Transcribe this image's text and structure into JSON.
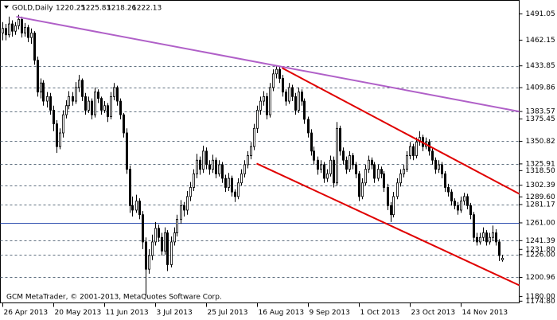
{
  "chart_data": {
    "type": "candlestick",
    "title": "GOLD,Daily",
    "quote": [
      1220.25,
      1225.83,
      1218.26,
      1222.13
    ],
    "footer": "GCM MetaTrader, © 2001-2013, MetaQuotes Software Corp.",
    "ylim": [
      1172.9,
      1505.9
    ],
    "xlim": [
      -0.5,
      162.5
    ],
    "yticks": [
      {
        "value": 1491.05,
        "label": "1491.05"
      },
      {
        "value": 1462.15,
        "label": "1462.15"
      },
      {
        "value": 1433.85,
        "label": "1433.85"
      },
      {
        "value": 1409.86,
        "label": "1409.86"
      },
      {
        "value": 1383.57,
        "label": "1383.57"
      },
      {
        "value": 1375.45,
        "label": "1375.45"
      },
      {
        "value": 1350.82,
        "label": "1350.82"
      },
      {
        "value": 1325.91,
        "label": "1325.91"
      },
      {
        "value": 1318.5,
        "label": "1318.50"
      },
      {
        "value": 1302.39,
        "label": "1302.39"
      },
      {
        "value": 1289.6,
        "label": "1289.60"
      },
      {
        "value": 1281.17,
        "label": "1281.17"
      },
      {
        "value": 1261,
        "label": "1261.00"
      },
      {
        "value": 1241.39,
        "label": "1241.39"
      },
      {
        "value": 1231.8,
        "label": "1231.80"
      },
      {
        "value": 1226,
        "label": "1226.00"
      },
      {
        "value": 1200.96,
        "label": "1200.96"
      },
      {
        "value": 1180,
        "label": "1180.00"
      },
      {
        "value": 1174.8,
        "label": "1174.80"
      }
    ],
    "grid_levels": [
      1433.85,
      1409.86,
      1383.57,
      1350.82,
      1325.91,
      1302.39,
      1281.17,
      1241.39,
      1226,
      1200.96
    ],
    "hlines": [
      {
        "value": 1261,
        "color": "#3050b0"
      }
    ],
    "xticks": [
      {
        "value": 0,
        "label": "26 Apr 2013"
      },
      {
        "value": 16,
        "label": "20 May 2013"
      },
      {
        "value": 32,
        "label": "11 Jun 2013"
      },
      {
        "value": 48,
        "label": "3 Jul 2013"
      },
      {
        "value": 64,
        "label": "25 Jul 2013"
      },
      {
        "value": 80,
        "label": "16 Aug 2013"
      },
      {
        "value": 96,
        "label": "9 Sep 2013"
      },
      {
        "value": 112,
        "label": "1 Oct 2013"
      },
      {
        "value": 128,
        "label": "23 Oct 2013"
      },
      {
        "value": 144,
        "label": "14 Nov 2013"
      }
    ],
    "trendlines": [
      {
        "x": [
          4.5,
          162.5
        ],
        "y": [
          1488,
          1383.57
        ],
        "color": "#b060c8"
      },
      {
        "x": [
          88,
          162.5
        ],
        "y": [
          1431.5,
          1293
        ],
        "color": "#e00000"
      },
      {
        "x": [
          80,
          162.5
        ],
        "y": [
          1326.3,
          1192.3
        ],
        "color": "#e00000"
      }
    ],
    "up_color": "#ffffff",
    "down_color": "#000000",
    "ohlc": [
      [
        1470,
        1482,
        1462,
        1475
      ],
      [
        1475,
        1480,
        1462,
        1468
      ],
      [
        1468,
        1488,
        1465,
        1480
      ],
      [
        1480,
        1484,
        1466,
        1472
      ],
      [
        1472,
        1482,
        1468,
        1478
      ],
      [
        1478,
        1490,
        1474,
        1485
      ],
      [
        1485,
        1488,
        1465,
        1470
      ],
      [
        1470,
        1481,
        1466,
        1476
      ],
      [
        1476,
        1479,
        1460,
        1465
      ],
      [
        1465,
        1475,
        1458,
        1470
      ],
      [
        1470,
        1472,
        1435,
        1440
      ],
      [
        1440,
        1444,
        1400,
        1405
      ],
      [
        1405,
        1420,
        1398,
        1415
      ],
      [
        1415,
        1418,
        1390,
        1395
      ],
      [
        1395,
        1405,
        1388,
        1400
      ],
      [
        1400,
        1404,
        1380,
        1385
      ],
      [
        1385,
        1390,
        1362,
        1370
      ],
      [
        1370,
        1374,
        1338,
        1345
      ],
      [
        1345,
        1365,
        1342,
        1360
      ],
      [
        1360,
        1385,
        1355,
        1380
      ],
      [
        1380,
        1396,
        1376,
        1390
      ],
      [
        1390,
        1406,
        1386,
        1400
      ],
      [
        1400,
        1405,
        1390,
        1395
      ],
      [
        1395,
        1416,
        1392,
        1410
      ],
      [
        1410,
        1424,
        1405,
        1418
      ],
      [
        1418,
        1420,
        1395,
        1400
      ],
      [
        1400,
        1404,
        1380,
        1385
      ],
      [
        1385,
        1400,
        1382,
        1395
      ],
      [
        1395,
        1398,
        1375,
        1380
      ],
      [
        1380,
        1410,
        1377,
        1405
      ],
      [
        1405,
        1408,
        1393,
        1398
      ],
      [
        1398,
        1400,
        1380,
        1385
      ],
      [
        1385,
        1395,
        1382,
        1390
      ],
      [
        1390,
        1393,
        1372,
        1378
      ],
      [
        1378,
        1405,
        1375,
        1400
      ],
      [
        1400,
        1415,
        1396,
        1410
      ],
      [
        1410,
        1412,
        1390,
        1395
      ],
      [
        1395,
        1398,
        1375,
        1380
      ],
      [
        1380,
        1382,
        1355,
        1360
      ],
      [
        1360,
        1365,
        1315,
        1320
      ],
      [
        1320,
        1324,
        1272,
        1280
      ],
      [
        1280,
        1290,
        1268,
        1275
      ],
      [
        1275,
        1292,
        1272,
        1285
      ],
      [
        1285,
        1288,
        1265,
        1270
      ],
      [
        1270,
        1274,
        1232,
        1240
      ],
      [
        1240,
        1245,
        1180,
        1210
      ],
      [
        1210,
        1232,
        1205,
        1225
      ],
      [
        1225,
        1248,
        1220,
        1240
      ],
      [
        1240,
        1262,
        1236,
        1255
      ],
      [
        1255,
        1259,
        1240,
        1245
      ],
      [
        1245,
        1250,
        1225,
        1230
      ],
      [
        1230,
        1256,
        1226,
        1250
      ],
      [
        1250,
        1253,
        1208,
        1215
      ],
      [
        1215,
        1246,
        1212,
        1240
      ],
      [
        1240,
        1256,
        1236,
        1250
      ],
      [
        1250,
        1270,
        1246,
        1265
      ],
      [
        1265,
        1286,
        1260,
        1280
      ],
      [
        1280,
        1284,
        1268,
        1275
      ],
      [
        1275,
        1296,
        1270,
        1290
      ],
      [
        1290,
        1306,
        1285,
        1300
      ],
      [
        1300,
        1320,
        1296,
        1315
      ],
      [
        1315,
        1337,
        1310,
        1330
      ],
      [
        1330,
        1334,
        1314,
        1320
      ],
      [
        1320,
        1346,
        1316,
        1340
      ],
      [
        1340,
        1344,
        1320,
        1325
      ],
      [
        1325,
        1330,
        1314,
        1320
      ],
      [
        1320,
        1336,
        1316,
        1330
      ],
      [
        1330,
        1333,
        1310,
        1315
      ],
      [
        1315,
        1330,
        1312,
        1325
      ],
      [
        1325,
        1328,
        1305,
        1310
      ],
      [
        1310,
        1314,
        1295,
        1300
      ],
      [
        1300,
        1316,
        1296,
        1310
      ],
      [
        1310,
        1313,
        1290,
        1295
      ],
      [
        1295,
        1298,
        1284,
        1290
      ],
      [
        1290,
        1310,
        1287,
        1305
      ],
      [
        1305,
        1320,
        1302,
        1315
      ],
      [
        1315,
        1330,
        1311,
        1325
      ],
      [
        1325,
        1340,
        1321,
        1335
      ],
      [
        1335,
        1350,
        1331,
        1345
      ],
      [
        1345,
        1370,
        1341,
        1365
      ],
      [
        1365,
        1390,
        1360,
        1385
      ],
      [
        1385,
        1400,
        1380,
        1395
      ],
      [
        1395,
        1406,
        1390,
        1400
      ],
      [
        1400,
        1404,
        1375,
        1380
      ],
      [
        1380,
        1415,
        1377,
        1410
      ],
      [
        1410,
        1430,
        1406,
        1425
      ],
      [
        1425,
        1434,
        1420,
        1430
      ],
      [
        1430,
        1433,
        1415,
        1420
      ],
      [
        1420,
        1424,
        1400,
        1405
      ],
      [
        1405,
        1408,
        1390,
        1395
      ],
      [
        1395,
        1415,
        1392,
        1410
      ],
      [
        1410,
        1413,
        1395,
        1400
      ],
      [
        1400,
        1404,
        1380,
        1385
      ],
      [
        1385,
        1410,
        1382,
        1405
      ],
      [
        1405,
        1408,
        1390,
        1395
      ],
      [
        1395,
        1398,
        1370,
        1375
      ],
      [
        1375,
        1378,
        1355,
        1360
      ],
      [
        1360,
        1364,
        1335,
        1340
      ],
      [
        1340,
        1345,
        1325,
        1330
      ],
      [
        1330,
        1334,
        1314,
        1320
      ],
      [
        1320,
        1330,
        1316,
        1325
      ],
      [
        1325,
        1328,
        1305,
        1310
      ],
      [
        1310,
        1320,
        1306,
        1315
      ],
      [
        1315,
        1335,
        1312,
        1330
      ],
      [
        1330,
        1334,
        1300,
        1305
      ],
      [
        1305,
        1372,
        1302,
        1365
      ],
      [
        1365,
        1368,
        1335,
        1340
      ],
      [
        1340,
        1344,
        1325,
        1330
      ],
      [
        1330,
        1334,
        1315,
        1320
      ],
      [
        1320,
        1340,
        1317,
        1335
      ],
      [
        1335,
        1338,
        1320,
        1325
      ],
      [
        1325,
        1328,
        1310,
        1315
      ],
      [
        1315,
        1318,
        1285,
        1290
      ],
      [
        1290,
        1310,
        1287,
        1305
      ],
      [
        1305,
        1325,
        1302,
        1320
      ],
      [
        1320,
        1335,
        1316,
        1330
      ],
      [
        1330,
        1333,
        1320,
        1325
      ],
      [
        1325,
        1328,
        1305,
        1310
      ],
      [
        1310,
        1325,
        1307,
        1320
      ],
      [
        1320,
        1323,
        1310,
        1315
      ],
      [
        1315,
        1318,
        1295,
        1300
      ],
      [
        1300,
        1304,
        1275,
        1280
      ],
      [
        1280,
        1284,
        1262,
        1270
      ],
      [
        1270,
        1295,
        1267,
        1290
      ],
      [
        1290,
        1310,
        1287,
        1305
      ],
      [
        1305,
        1320,
        1301,
        1315
      ],
      [
        1315,
        1325,
        1311,
        1320
      ],
      [
        1320,
        1340,
        1317,
        1335
      ],
      [
        1335,
        1350,
        1331,
        1345
      ],
      [
        1345,
        1348,
        1330,
        1335
      ],
      [
        1335,
        1355,
        1332,
        1350
      ],
      [
        1350,
        1362,
        1346,
        1355
      ],
      [
        1355,
        1358,
        1340,
        1345
      ],
      [
        1345,
        1355,
        1342,
        1350
      ],
      [
        1350,
        1353,
        1335,
        1340
      ],
      [
        1340,
        1343,
        1325,
        1330
      ],
      [
        1330,
        1333,
        1315,
        1320
      ],
      [
        1320,
        1330,
        1316,
        1325
      ],
      [
        1325,
        1328,
        1310,
        1315
      ],
      [
        1315,
        1318,
        1295,
        1300
      ],
      [
        1300,
        1304,
        1290,
        1295
      ],
      [
        1295,
        1298,
        1280,
        1285
      ],
      [
        1285,
        1288,
        1276,
        1280
      ],
      [
        1280,
        1284,
        1270,
        1275
      ],
      [
        1275,
        1290,
        1272,
        1285
      ],
      [
        1285,
        1294,
        1281,
        1290
      ],
      [
        1290,
        1293,
        1276,
        1280
      ],
      [
        1280,
        1283,
        1265,
        1270
      ],
      [
        1270,
        1273,
        1240,
        1245
      ],
      [
        1245,
        1250,
        1236,
        1240
      ],
      [
        1240,
        1250,
        1237,
        1245
      ],
      [
        1245,
        1256,
        1241,
        1250
      ],
      [
        1250,
        1253,
        1236,
        1240
      ],
      [
        1240,
        1250,
        1237,
        1245
      ],
      [
        1245,
        1258,
        1241,
        1250
      ],
      [
        1250,
        1254,
        1236,
        1240
      ],
      [
        1240,
        1243,
        1219,
        1225
      ],
      [
        1220.25,
        1225.83,
        1218.26,
        1222.13
      ]
    ]
  }
}
